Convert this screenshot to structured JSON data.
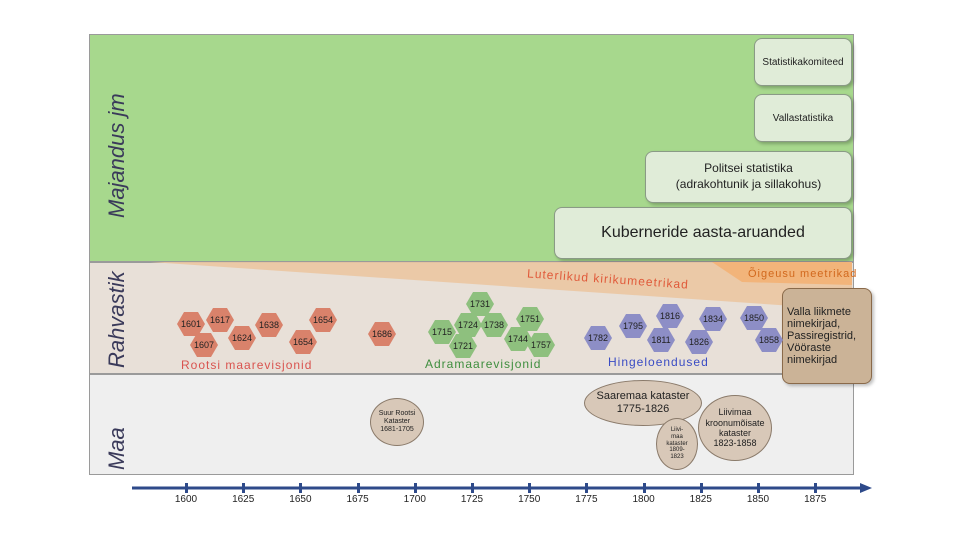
{
  "bands": {
    "majandus": "Majandus jm",
    "rahvastik": "Rahvastik",
    "maa": "Maa"
  },
  "economy_boxes": {
    "statistikakomiteed": "Statistikakomiteed",
    "vallastatistika": "Vallastatistika",
    "politsei": "Politsei statistika\n(adrakohtunik ja sillakohus)",
    "kubernerid": "Kuberneride aasta-aruanded"
  },
  "church_records": {
    "luterlikud": "Luterlikud kirikumeetrikad",
    "oigeusu": "Õigeusu meetrikad"
  },
  "side_box": "Valla liikmete nimekirjad, Passiregistrid, Vööraste nimekirjad",
  "revisions": {
    "rootsi": {
      "label": "Rootsi maarevisjonid",
      "years": [
        "1601",
        "1617",
        "1638",
        "1654",
        "1607",
        "1624",
        "1654",
        "1686"
      ]
    },
    "adramaa": {
      "label": "Adramaarevisjonid",
      "years": [
        "1731",
        "1715",
        "1724",
        "1738",
        "1751",
        "1721",
        "1744",
        "1757"
      ]
    },
    "hinge": {
      "label": "Hingeloendused",
      "years": [
        "1782",
        "1795",
        "1816",
        "1811",
        "1834",
        "1826",
        "1850",
        "1858"
      ]
    }
  },
  "cadastres": {
    "suur_rootsi": "Suur Rootsi\nKataster\n1681-1705",
    "saaremaa": "Saaremaa kataster\n1775-1826",
    "liivimaa_small": "Liivi-\nmaa\nkataster\n1809-\n1823",
    "liivimaa_kroonu": "Liivimaa\nkroonumõisate\nkataster\n1823-1858"
  },
  "axis_years": [
    "1600",
    "1625",
    "1650",
    "1675",
    "1700",
    "1725",
    "1750",
    "1775",
    "1800",
    "1825",
    "1850",
    "1875"
  ],
  "colors": {
    "green_band": "#a7d88d",
    "rahvastik_band": "#e8e0d8",
    "maa_band": "#efefef",
    "red_hex": "#d9826b",
    "green_hex": "#8ec07e",
    "blue_hex": "#8d8ec6",
    "axis": "#2e4a8a"
  }
}
